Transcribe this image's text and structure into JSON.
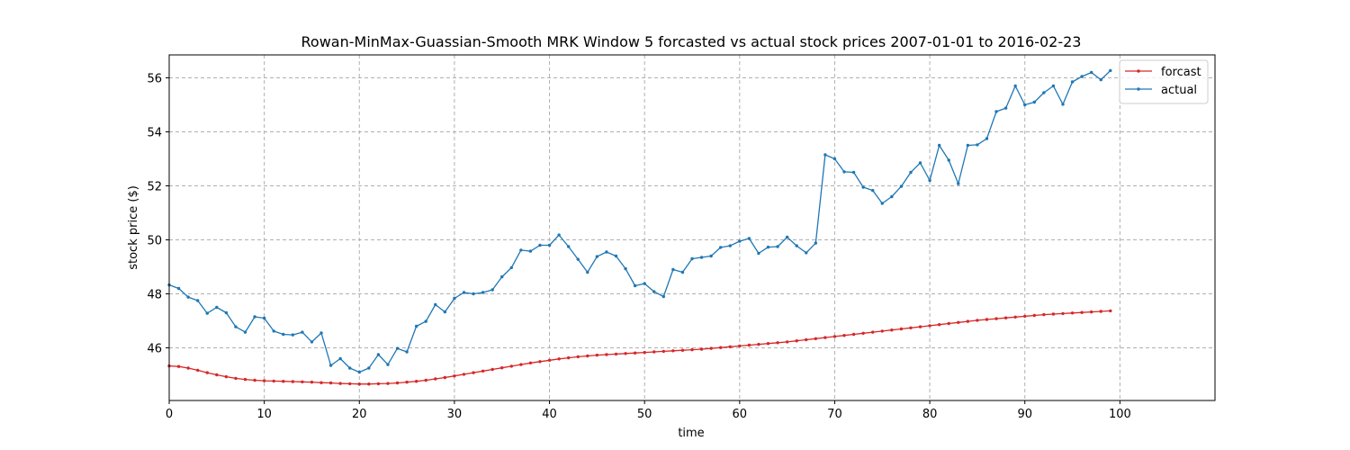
{
  "chart_data": {
    "type": "line",
    "title": "Rowan-MinMax-Guassian-Smooth MRK Window 5 forcasted vs actual stock prices 2007-01-01 to 2016-02-23",
    "xlabel": "time",
    "ylabel": "stock price ($)",
    "xlim": [
      0,
      110
    ],
    "ylim": [
      44.05,
      56.85
    ],
    "x_ticks": [
      0,
      10,
      20,
      30,
      40,
      50,
      60,
      70,
      80,
      90,
      100
    ],
    "y_ticks": [
      46,
      48,
      50,
      52,
      54,
      56
    ],
    "grid": true,
    "legend_position": "top-right",
    "x": [
      0,
      1,
      2,
      3,
      4,
      5,
      6,
      7,
      8,
      9,
      10,
      11,
      12,
      13,
      14,
      15,
      16,
      17,
      18,
      19,
      20,
      21,
      22,
      23,
      24,
      25,
      26,
      27,
      28,
      29,
      30,
      31,
      32,
      33,
      34,
      35,
      36,
      37,
      38,
      39,
      40,
      41,
      42,
      43,
      44,
      45,
      46,
      47,
      48,
      49,
      50,
      51,
      52,
      53,
      54,
      55,
      56,
      57,
      58,
      59,
      60,
      61,
      62,
      63,
      64,
      65,
      66,
      67,
      68,
      69,
      70,
      71,
      72,
      73,
      74,
      75,
      76,
      77,
      78,
      79,
      80,
      81,
      82,
      83,
      84,
      85,
      86,
      87,
      88,
      89,
      90,
      91,
      92,
      93,
      94,
      95,
      96,
      97,
      98,
      99
    ],
    "series": [
      {
        "name": "forcast",
        "color": "#d62728",
        "values": [
          45.33,
          45.31,
          45.25,
          45.17,
          45.08,
          45.0,
          44.93,
          44.87,
          44.83,
          44.8,
          44.78,
          44.77,
          44.76,
          44.75,
          44.74,
          44.73,
          44.71,
          44.7,
          44.68,
          44.67,
          44.66,
          44.66,
          44.67,
          44.68,
          44.7,
          44.73,
          44.76,
          44.8,
          44.85,
          44.9,
          44.96,
          45.02,
          45.08,
          45.14,
          45.2,
          45.26,
          45.32,
          45.38,
          45.44,
          45.49,
          45.54,
          45.59,
          45.63,
          45.67,
          45.7,
          45.73,
          45.75,
          45.77,
          45.79,
          45.81,
          45.83,
          45.85,
          45.87,
          45.89,
          45.91,
          45.93,
          45.95,
          45.98,
          46.01,
          46.04,
          46.07,
          46.1,
          46.13,
          46.16,
          46.19,
          46.22,
          46.26,
          46.3,
          46.34,
          46.38,
          46.42,
          46.46,
          46.5,
          46.54,
          46.58,
          46.62,
          46.66,
          46.7,
          46.74,
          46.78,
          46.82,
          46.86,
          46.9,
          46.94,
          46.98,
          47.02,
          47.05,
          47.08,
          47.11,
          47.14,
          47.17,
          47.2,
          47.23,
          47.25,
          47.27,
          47.29,
          47.31,
          47.33,
          47.35,
          47.37
        ]
      },
      {
        "name": "actual",
        "color": "#1f77b4",
        "values": [
          48.33,
          48.2,
          47.88,
          47.75,
          47.28,
          47.5,
          47.3,
          46.78,
          46.58,
          47.15,
          47.1,
          46.62,
          46.5,
          46.48,
          46.58,
          46.22,
          46.55,
          45.35,
          45.6,
          45.25,
          45.1,
          45.25,
          45.75,
          45.38,
          45.98,
          45.85,
          46.8,
          46.98,
          47.6,
          47.33,
          47.83,
          48.05,
          48.0,
          48.05,
          48.15,
          48.63,
          48.97,
          49.62,
          49.58,
          49.8,
          49.8,
          50.18,
          49.75,
          49.28,
          48.8,
          49.38,
          49.55,
          49.4,
          48.93,
          48.3,
          48.38,
          48.08,
          47.9,
          48.9,
          48.8,
          49.3,
          49.35,
          49.4,
          49.72,
          49.78,
          49.95,
          50.05,
          49.5,
          49.73,
          49.75,
          50.1,
          49.78,
          49.52,
          49.88,
          53.15,
          53.0,
          52.52,
          52.5,
          51.95,
          51.83,
          51.35,
          51.6,
          51.98,
          52.5,
          52.85,
          52.2,
          53.5,
          52.95,
          52.08,
          53.5,
          53.52,
          53.75,
          54.75,
          54.88,
          55.7,
          55.0,
          55.1,
          55.45,
          55.7,
          55.02,
          55.85,
          56.05,
          56.2,
          55.93,
          56.27
        ]
      }
    ]
  }
}
